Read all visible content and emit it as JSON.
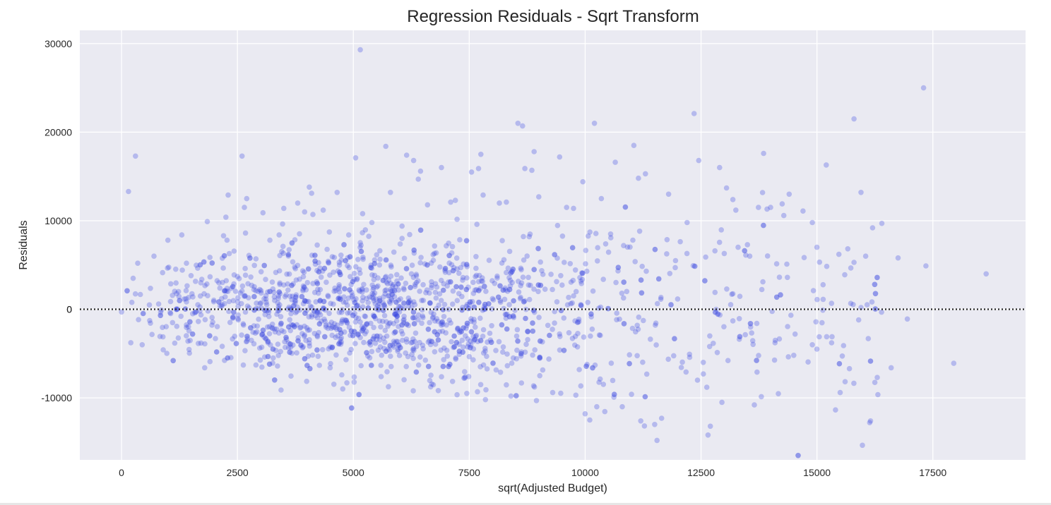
{
  "chart_data": {
    "type": "scatter",
    "title": "Regression Residuals - Sqrt Transform",
    "xlabel": "sqrt(Adjusted Budget)",
    "ylabel": "Residuals",
    "xlim": [
      -900,
      19500
    ],
    "ylim": [
      -17000,
      31500
    ],
    "xticks": [
      0,
      2500,
      5000,
      7500,
      10000,
      12500,
      15000,
      17500
    ],
    "yticks": [
      -10000,
      0,
      10000,
      20000,
      30000
    ],
    "grid": true,
    "reference_line": {
      "y": 0,
      "style": "dotted"
    },
    "colors": {
      "points": "#3b48e0",
      "background": "#eaeaf2",
      "grid": "#ffffff",
      "reference_line": "#262626"
    },
    "point_alpha": 0.3,
    "series": [
      {
        "points": [
          [
            0,
            -300
          ],
          [
            150,
            13300
          ],
          [
            300,
            17300
          ],
          [
            350,
            5200
          ],
          [
            250,
            3500
          ],
          [
            600,
            500
          ],
          [
            700,
            6000
          ],
          [
            800,
            600
          ],
          [
            1000,
            7800
          ],
          [
            1100,
            -1500
          ],
          [
            1300,
            8400
          ],
          [
            1400,
            5200
          ],
          [
            1500,
            3800
          ],
          [
            1700,
            1500
          ],
          [
            1850,
            9900
          ],
          [
            1900,
            -3000
          ],
          [
            2100,
            3000
          ],
          [
            2200,
            8300
          ],
          [
            2300,
            12900
          ],
          [
            2250,
            10400
          ],
          [
            2400,
            -1000
          ],
          [
            2500,
            3700
          ],
          [
            2600,
            17300
          ],
          [
            2650,
            11500
          ],
          [
            2700,
            12500
          ],
          [
            2800,
            -3500
          ],
          [
            2900,
            5700
          ],
          [
            3050,
            10900
          ],
          [
            3200,
            7800
          ],
          [
            3400,
            8400
          ],
          [
            3500,
            11400
          ],
          [
            3600,
            -3800
          ],
          [
            3800,
            12000
          ],
          [
            3950,
            11000
          ],
          [
            4050,
            13800
          ],
          [
            4100,
            13100
          ],
          [
            4350,
            11200
          ],
          [
            4500,
            -6600
          ],
          [
            4650,
            13200
          ],
          [
            4700,
            5000
          ],
          [
            4750,
            -7400
          ],
          [
            4900,
            8400
          ],
          [
            5050,
            17100
          ],
          [
            5150,
            29300
          ],
          [
            5200,
            10800
          ],
          [
            5400,
            9800
          ],
          [
            5600,
            -7600
          ],
          [
            5700,
            18400
          ],
          [
            5800,
            13200
          ],
          [
            6050,
            8000
          ],
          [
            6150,
            17400
          ],
          [
            6300,
            16800
          ],
          [
            6400,
            14700
          ],
          [
            6450,
            15600
          ],
          [
            6600,
            11800
          ],
          [
            6900,
            16000
          ],
          [
            7100,
            12100
          ],
          [
            7200,
            12300
          ],
          [
            7550,
            15500
          ],
          [
            7700,
            15900
          ],
          [
            7750,
            17500
          ],
          [
            7800,
            12900
          ],
          [
            7850,
            -10200
          ],
          [
            8150,
            12000
          ],
          [
            8300,
            12100
          ],
          [
            8400,
            -9800
          ],
          [
            8550,
            21000
          ],
          [
            8650,
            20700
          ],
          [
            8700,
            15900
          ],
          [
            8850,
            15700
          ],
          [
            8900,
            17800
          ],
          [
            8950,
            -10300
          ],
          [
            9000,
            12700
          ],
          [
            9300,
            -9400
          ],
          [
            9450,
            17200
          ],
          [
            9600,
            11500
          ],
          [
            9750,
            11400
          ],
          [
            9800,
            -9700
          ],
          [
            9950,
            14400
          ],
          [
            10000,
            -11800
          ],
          [
            10100,
            -12500
          ],
          [
            10200,
            21000
          ],
          [
            10250,
            -11000
          ],
          [
            10350,
            12500
          ],
          [
            10550,
            8500
          ],
          [
            10650,
            16600
          ],
          [
            10800,
            -11000
          ],
          [
            11000,
            -9600
          ],
          [
            11050,
            18500
          ],
          [
            11150,
            14800
          ],
          [
            11200,
            -12600
          ],
          [
            11300,
            15300
          ],
          [
            11500,
            -13000
          ],
          [
            11550,
            -14800
          ],
          [
            11650,
            -12300
          ],
          [
            11800,
            13000
          ],
          [
            11950,
            5500
          ],
          [
            12200,
            9800
          ],
          [
            12350,
            22100
          ],
          [
            12450,
            16800
          ],
          [
            12550,
            -7300
          ],
          [
            12650,
            -14200
          ],
          [
            12700,
            -13200
          ],
          [
            12900,
            16000
          ],
          [
            12950,
            -10500
          ],
          [
            13050,
            13700
          ],
          [
            13250,
            11200
          ],
          [
            13650,
            -10800
          ],
          [
            13850,
            17600
          ],
          [
            14000,
            11500
          ],
          [
            14250,
            11900
          ],
          [
            14400,
            13000
          ],
          [
            14700,
            11100
          ],
          [
            14900,
            9800
          ],
          [
            15000,
            7000
          ],
          [
            15200,
            16300
          ],
          [
            15500,
            -9400
          ],
          [
            15700,
            -6700
          ],
          [
            15800,
            21500
          ],
          [
            15950,
            13200
          ],
          [
            16050,
            6000
          ],
          [
            16200,
            9200
          ],
          [
            16300,
            -7700
          ],
          [
            16400,
            9700
          ],
          [
            16600,
            -6600
          ],
          [
            16750,
            5800
          ],
          [
            16950,
            -1100
          ],
          [
            17300,
            25000
          ],
          [
            17350,
            4900
          ],
          [
            17950,
            -6100
          ],
          [
            18650,
            4000
          ],
          [
            13000,
            6300
          ],
          [
            12800,
            6600
          ],
          [
            12600,
            5900
          ],
          [
            13300,
            7000
          ],
          [
            13500,
            7300
          ],
          [
            13550,
            6000
          ],
          [
            14900,
            -4000
          ],
          [
            15000,
            -4500
          ],
          [
            15050,
            -3100
          ],
          [
            14100,
            -3500
          ],
          [
            14500,
            -5200
          ],
          [
            14350,
            5100
          ],
          [
            15950,
            200
          ],
          [
            15900,
            -1200
          ],
          [
            15800,
            5300
          ],
          [
            15600,
            3900
          ]
        ]
      }
    ]
  }
}
